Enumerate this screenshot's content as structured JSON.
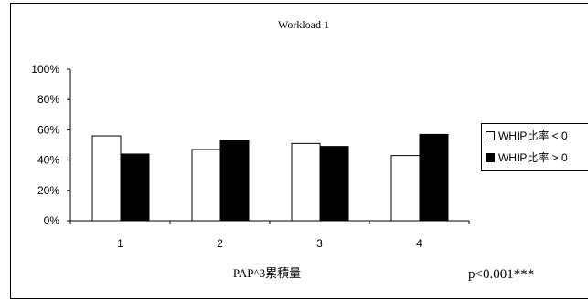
{
  "chart_data": {
    "type": "bar",
    "title": "Workload 1",
    "xlabel": "PAP^3累積量",
    "ylabel": "",
    "categories": [
      "1",
      "2",
      "3",
      "4"
    ],
    "ylim": [
      0,
      100
    ],
    "yticks": [
      "0%",
      "20%",
      "40%",
      "60%",
      "80%",
      "100%"
    ],
    "ytick_values": [
      0,
      20,
      40,
      60,
      80,
      100
    ],
    "series": [
      {
        "name": "WHIP比率 < 0",
        "values": [
          56,
          47,
          51,
          43
        ],
        "color": "#ffffff"
      },
      {
        "name": "WHIP比率 > 0",
        "values": [
          44,
          53,
          49,
          57
        ],
        "color": "#000000"
      }
    ],
    "legend_position": "right",
    "annotation": "p<0.001***",
    "grid": false
  }
}
